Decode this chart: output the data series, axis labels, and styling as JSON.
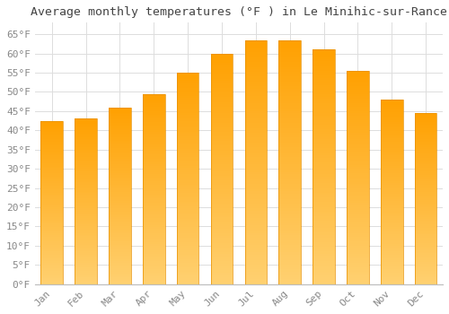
{
  "title": "Average monthly temperatures (°F ) in Le Minihic-sur-Rance",
  "months": [
    "Jan",
    "Feb",
    "Mar",
    "Apr",
    "May",
    "Jun",
    "Jul",
    "Aug",
    "Sep",
    "Oct",
    "Nov",
    "Dec"
  ],
  "values": [
    42.5,
    43.0,
    46.0,
    49.5,
    55.0,
    60.0,
    63.5,
    63.5,
    61.0,
    55.5,
    48.0,
    44.5
  ],
  "bar_color_top": "#FFA500",
  "bar_color_bottom": "#FFD070",
  "bar_edge_color": "#E89000",
  "background_color": "#FFFFFF",
  "grid_color": "#DDDDDD",
  "ylim": [
    0,
    68
  ],
  "yticks": [
    0,
    5,
    10,
    15,
    20,
    25,
    30,
    35,
    40,
    45,
    50,
    55,
    60,
    65
  ],
  "title_fontsize": 9.5,
  "tick_fontsize": 8,
  "tick_color": "#888888",
  "title_color": "#444444"
}
